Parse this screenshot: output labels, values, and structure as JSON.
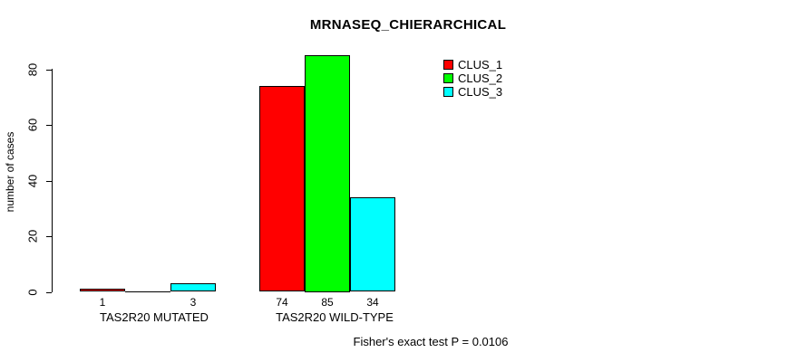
{
  "chart_data": {
    "type": "bar",
    "title": "MRNASEQ_CHIERARCHICAL",
    "ylabel": "number of cases",
    "xlabel": "",
    "categories": [
      "TAS2R20 MUTATED",
      "TAS2R20 WILD-TYPE"
    ],
    "series": [
      {
        "name": "CLUS_1",
        "color": "#ff0000",
        "values": [
          1,
          74
        ]
      },
      {
        "name": "CLUS_2",
        "color": "#00ff00",
        "values": [
          0,
          85
        ]
      },
      {
        "name": "CLUS_3",
        "color": "#00ffff",
        "values": [
          3,
          34
        ]
      }
    ],
    "bar_value_labels": [
      [
        "1",
        "",
        "3"
      ],
      [
        "74",
        "85",
        "34"
      ]
    ],
    "yticks": [
      0,
      20,
      40,
      60,
      80
    ],
    "ylim": [
      0,
      85
    ],
    "grid": false,
    "legend_position": "top-right",
    "annotation": "Fisher's exact test P = 0.0106"
  }
}
